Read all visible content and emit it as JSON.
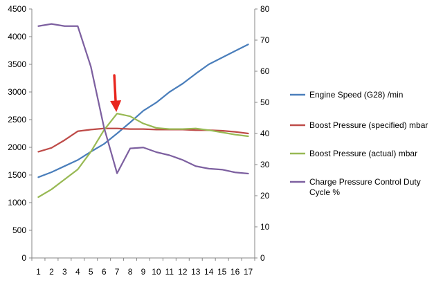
{
  "chart_data": {
    "type": "line",
    "categories": [
      "1",
      "2",
      "3",
      "4",
      "5",
      "6",
      "7",
      "8",
      "9",
      "10",
      "11",
      "12",
      "13",
      "14",
      "15",
      "16",
      "17"
    ],
    "left_axis": {
      "ylim": [
        0,
        4500
      ],
      "ticks": [
        0,
        500,
        1000,
        1500,
        2000,
        2500,
        3000,
        3500,
        4000,
        4500
      ],
      "tick_labels": [
        "0",
        "500",
        "1000",
        "1500",
        "2000",
        "2500",
        "3000",
        "3500",
        "4000",
        "4500"
      ]
    },
    "right_axis": {
      "ylim": [
        0,
        80
      ],
      "ticks": [
        0,
        10,
        20,
        30,
        40,
        50,
        60,
        70,
        80
      ],
      "tick_labels": [
        "0",
        "10",
        "20",
        "30",
        "40",
        "50",
        "60",
        "70",
        "80"
      ]
    },
    "series": [
      {
        "name": "Engine Speed  (G28)  /min",
        "axis": "left",
        "color": "#4a7ebb",
        "values": [
          1460,
          1550,
          1660,
          1770,
          1920,
          2060,
          2250,
          2450,
          2660,
          2810,
          3000,
          3150,
          3330,
          3500,
          3620,
          3740,
          3860
        ]
      },
      {
        "name": "Boost Pressure  (specified)   mbar",
        "axis": "left",
        "color": "#be4b48",
        "values": [
          1920,
          1990,
          2130,
          2290,
          2320,
          2340,
          2340,
          2330,
          2330,
          2320,
          2320,
          2320,
          2310,
          2310,
          2300,
          2280,
          2250
        ]
      },
      {
        "name": "Boost Pressure (actual)   mbar",
        "axis": "left",
        "color": "#98b954",
        "values": [
          1100,
          1240,
          1420,
          1600,
          1920,
          2310,
          2610,
          2560,
          2430,
          2350,
          2330,
          2330,
          2340,
          2310,
          2270,
          2230,
          2200
        ]
      },
      {
        "name": "Charge Pressure Control Duty Cycle  %",
        "axis": "right",
        "color": "#7d60a0",
        "values": [
          74.5,
          75.2,
          74.5,
          74.5,
          61.5,
          42.0,
          27.2,
          35.2,
          35.5,
          34.0,
          33.0,
          31.5,
          29.5,
          28.7,
          28.4,
          27.5,
          27.1
        ]
      }
    ],
    "annotations": [
      {
        "type": "arrow",
        "color": "#e8261e",
        "target_category": "7",
        "target_value_left": 2650
      }
    ],
    "grid": false,
    "legend_position": "right"
  }
}
